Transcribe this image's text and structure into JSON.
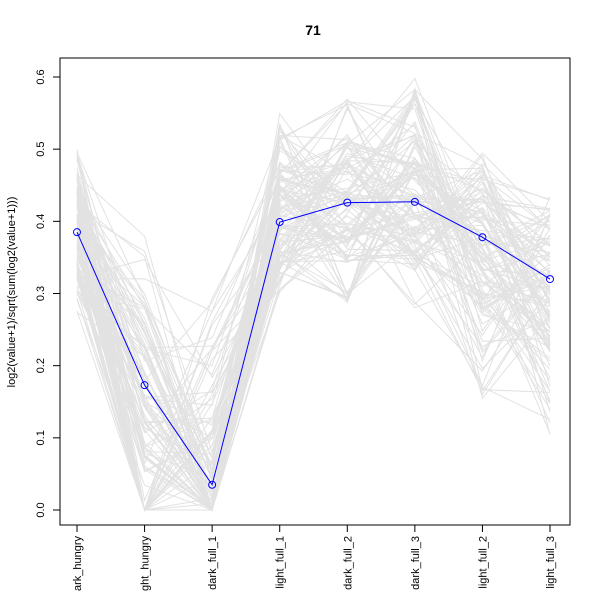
{
  "chart_data": {
    "type": "line",
    "title": "71",
    "xlabel": "",
    "ylabel": "log2(value+1)/sqrt(sum(log2(value+1)))",
    "categories": [
      "dark_hungry",
      "light_hungry",
      "dark_full_1",
      "light_full_1",
      "dark_full_2",
      "dark_full_3",
      "light_full_2",
      "light_full_3"
    ],
    "category_labels_visible": [
      "ark_hungry",
      "ght_hungry",
      "dark_full_1",
      "light_full_1",
      "dark_full_2",
      "dark_full_3",
      "light_full_2",
      "light_full_3"
    ],
    "ylim": [
      0.0,
      0.6
    ],
    "yticks": [
      "0.0",
      "0.1",
      "0.2",
      "0.3",
      "0.4",
      "0.5",
      "0.6"
    ],
    "grid": false,
    "legend": "none",
    "series": [
      {
        "values": [
          0.385,
          0.173,
          0.035,
          0.399,
          0.426,
          0.427,
          0.378,
          0.32
        ],
        "color": "#0000ff",
        "marker": "circle"
      }
    ],
    "background_series": {
      "count": 120,
      "color": "#e2e2e2",
      "typical_range_by_category": [
        [
          0.27,
          0.5
        ],
        [
          0.0,
          0.4
        ],
        [
          0.0,
          0.31
        ],
        [
          0.3,
          0.55
        ],
        [
          0.28,
          0.57
        ],
        [
          0.28,
          0.6
        ],
        [
          0.15,
          0.5
        ],
        [
          0.1,
          0.44
        ]
      ]
    }
  }
}
